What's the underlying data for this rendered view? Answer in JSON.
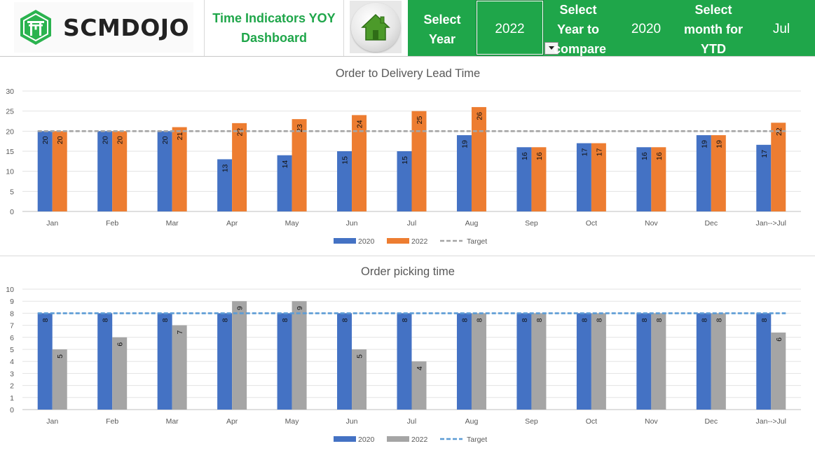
{
  "header": {
    "logo": {
      "text": "SCMDOJO",
      "icon": "scmdojo-torii-icon"
    },
    "title": "Time Indicators  YOY Dashboard",
    "home_button": {
      "icon": "home-icon"
    },
    "select_year_label": "Select Year",
    "select_year_value": "2022",
    "compare_label": "Select Year to compare",
    "compare_value": "2020",
    "month_label": "Select month for YTD",
    "month_value": "Jul",
    "colors": {
      "brand_green": "#1fa64a"
    }
  },
  "chart_data": [
    {
      "type": "bar",
      "title": "Order to Delivery Lead Time",
      "categories": [
        "Jan",
        "Feb",
        "Mar",
        "Apr",
        "May",
        "Jun",
        "Jul",
        "Aug",
        "Sep",
        "Oct",
        "Nov",
        "Dec",
        "Jan-->Jul"
      ],
      "series": [
        {
          "name": "2020",
          "color": "#4472c4",
          "values": [
            20,
            20,
            20,
            13,
            14,
            15,
            15,
            19,
            16,
            17,
            16,
            19,
            16.6
          ],
          "labels": [
            "20",
            "20",
            "20",
            "13",
            "14",
            "15",
            "15",
            "19",
            "16",
            "17",
            "16",
            "19",
            "17"
          ]
        },
        {
          "name": "2022",
          "color": "#ed7d31",
          "values": [
            20,
            20,
            21,
            22,
            23,
            24,
            25,
            26,
            16,
            17,
            16,
            19,
            22.1
          ],
          "labels": [
            "20",
            "20",
            "21",
            "22",
            "23",
            "24",
            "25",
            "26",
            "16",
            "17",
            "16",
            "19",
            "22"
          ]
        }
      ],
      "target": {
        "name": "Target",
        "value": 20,
        "color": "#a5a5a5"
      },
      "ylim": [
        0,
        30
      ],
      "yticks": [
        0,
        5,
        10,
        15,
        20,
        25,
        30
      ],
      "grid": true,
      "legend": "bottom"
    },
    {
      "type": "bar",
      "title": "Order picking time",
      "categories": [
        "Jan",
        "Feb",
        "Mar",
        "Apr",
        "May",
        "Jun",
        "Jul",
        "Aug",
        "Sep",
        "Oct",
        "Nov",
        "Dec",
        "Jan-->Jul"
      ],
      "series": [
        {
          "name": "2020",
          "color": "#4472c4",
          "values": [
            8,
            8,
            8,
            8,
            8,
            8,
            8,
            8,
            8,
            8,
            8,
            8,
            8
          ],
          "labels": [
            "8",
            "8",
            "8",
            "8",
            "8",
            "8",
            "8",
            "8",
            "8",
            "8",
            "8",
            "8",
            "8"
          ]
        },
        {
          "name": "2022",
          "color": "#a5a5a5",
          "values": [
            5,
            6,
            7,
            9,
            9,
            5,
            4,
            8,
            8,
            8,
            8,
            8,
            6.4
          ],
          "labels": [
            "5",
            "6",
            "7",
            "9",
            "9",
            "5",
            "4",
            "8",
            "8",
            "8",
            "8",
            "8",
            "6"
          ]
        }
      ],
      "target": {
        "name": "Target",
        "value": 8,
        "color": "#5b9bd5"
      },
      "ylim": [
        0,
        10
      ],
      "yticks": [
        0,
        1,
        2,
        3,
        4,
        5,
        6,
        7,
        8,
        9,
        10
      ],
      "grid": true,
      "legend": "bottom"
    }
  ]
}
